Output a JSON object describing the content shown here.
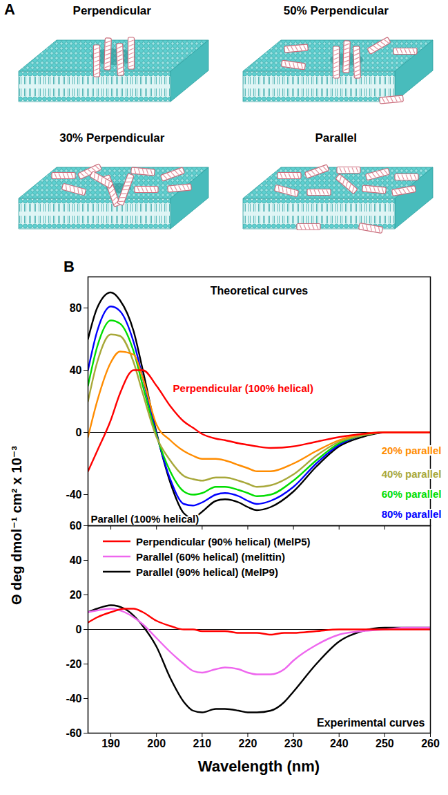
{
  "panel_a": {
    "label": "A",
    "titles": [
      "Perpendicular",
      "50% Perpendicular",
      "30% Perpendicular",
      "Parallel"
    ]
  },
  "panel_b": {
    "label": "B",
    "y_label": "Θ deg dmol⁻¹ cm² x 10⁻³",
    "x_label": "Wavelength (nm)"
  },
  "chart_data": [
    {
      "type": "line",
      "annotations": [
        "Theoretical curves"
      ],
      "x": [
        185,
        187,
        190,
        192,
        195,
        197,
        200,
        203,
        206,
        208,
        210,
        213,
        215,
        218,
        220,
        222,
        225,
        230,
        235,
        240,
        245,
        250,
        255,
        260
      ],
      "series": [
        {
          "name": "Perpendicular (100% helical)",
          "color": "#ff0000",
          "values": [
            -25,
            -12,
            8,
            25,
            40,
            40,
            30,
            17,
            7,
            3,
            -1,
            -4,
            -5,
            -7,
            -8,
            -9,
            -10,
            -9,
            -6,
            -3,
            -1,
            0,
            0,
            0
          ]
        },
        {
          "name": "20% parallel",
          "color": "#ff8c00",
          "values": [
            -3,
            20,
            45,
            52,
            50,
            35,
            5,
            -5,
            -12,
            -15,
            -17,
            -17,
            -18,
            -21,
            -23,
            -25,
            -25,
            -20,
            -12,
            -5,
            -1,
            0,
            0,
            0
          ]
        },
        {
          "name": "40% parallel",
          "color": "#a8a83a",
          "values": [
            20,
            45,
            63,
            62,
            45,
            25,
            -3,
            -18,
            -28,
            -30,
            -31,
            -29,
            -29,
            -31,
            -33,
            -35,
            -34,
            -27,
            -15,
            -6,
            -2,
            0,
            0,
            0
          ]
        },
        {
          "name": "60% parallel",
          "color": "#00dd00",
          "values": [
            30,
            55,
            72,
            70,
            52,
            30,
            -2,
            -25,
            -38,
            -40,
            -39,
            -35,
            -35,
            -37,
            -39,
            -41,
            -40,
            -31,
            -18,
            -7,
            -2,
            0,
            0,
            0
          ]
        },
        {
          "name": "80% parallel",
          "color": "#0000ff",
          "values": [
            40,
            65,
            81,
            78,
            58,
            35,
            -1,
            -30,
            -46,
            -47,
            -45,
            -40,
            -39,
            -41,
            -44,
            -46,
            -44,
            -35,
            -20,
            -8,
            -2,
            0,
            0,
            0
          ]
        },
        {
          "name": "Parallel (100% helical)",
          "color": "#000000",
          "values": [
            60,
            80,
            90,
            85,
            65,
            40,
            0,
            -32,
            -52,
            -55,
            -51,
            -44,
            -43,
            -45,
            -48,
            -50,
            -48,
            -38,
            -22,
            -9,
            -3,
            0,
            0,
            0
          ]
        }
      ],
      "xlim": [
        185,
        260
      ],
      "ylim": [
        -60,
        100
      ],
      "xticks": [
        190,
        200,
        210,
        220,
        230,
        240,
        250,
        260
      ],
      "yticks": [
        -40,
        0,
        40,
        80
      ],
      "tick_labels": "y"
    },
    {
      "type": "line",
      "annotations": [
        "Experimental curves"
      ],
      "x": [
        185,
        187,
        190,
        193,
        195,
        197,
        200,
        203,
        206,
        208,
        210,
        213,
        215,
        218,
        220,
        222,
        225,
        228,
        230,
        235,
        240,
        245,
        250,
        255,
        260
      ],
      "series": [
        {
          "name": "Perpendicular (90% helical) (MelP5)",
          "color": "#ff0000",
          "values": [
            4,
            7,
            10,
            12,
            12,
            10,
            5,
            2,
            0,
            0,
            -1,
            -1,
            -1,
            -2,
            -2,
            -2,
            -3,
            -2,
            -2,
            -1,
            0,
            0,
            0,
            0,
            0
          ]
        },
        {
          "name": "Parallel (60% helical) (melittin)",
          "color": "#ee66ee",
          "values": [
            10,
            11,
            12,
            10,
            7,
            3,
            -5,
            -13,
            -20,
            -24,
            -25,
            -23,
            -22,
            -23,
            -25,
            -26,
            -26,
            -23,
            -18,
            -9,
            -3,
            -1,
            0,
            1,
            1
          ]
        },
        {
          "name": "Parallel (90% helical) (MelP9)",
          "color": "#000000",
          "values": [
            10,
            12,
            14,
            12,
            8,
            2,
            -10,
            -28,
            -42,
            -47,
            -48,
            -46,
            -46,
            -47,
            -48,
            -48,
            -47,
            -42,
            -36,
            -20,
            -7,
            -1,
            1,
            1,
            1
          ]
        }
      ],
      "xlim": [
        185,
        260
      ],
      "ylim": [
        -60,
        60
      ],
      "xticks": [
        190,
        200,
        210,
        220,
        230,
        240,
        250,
        260
      ],
      "yticks": [
        -60,
        -40,
        -20,
        0,
        20,
        40,
        60
      ],
      "legend": "top-left"
    }
  ]
}
